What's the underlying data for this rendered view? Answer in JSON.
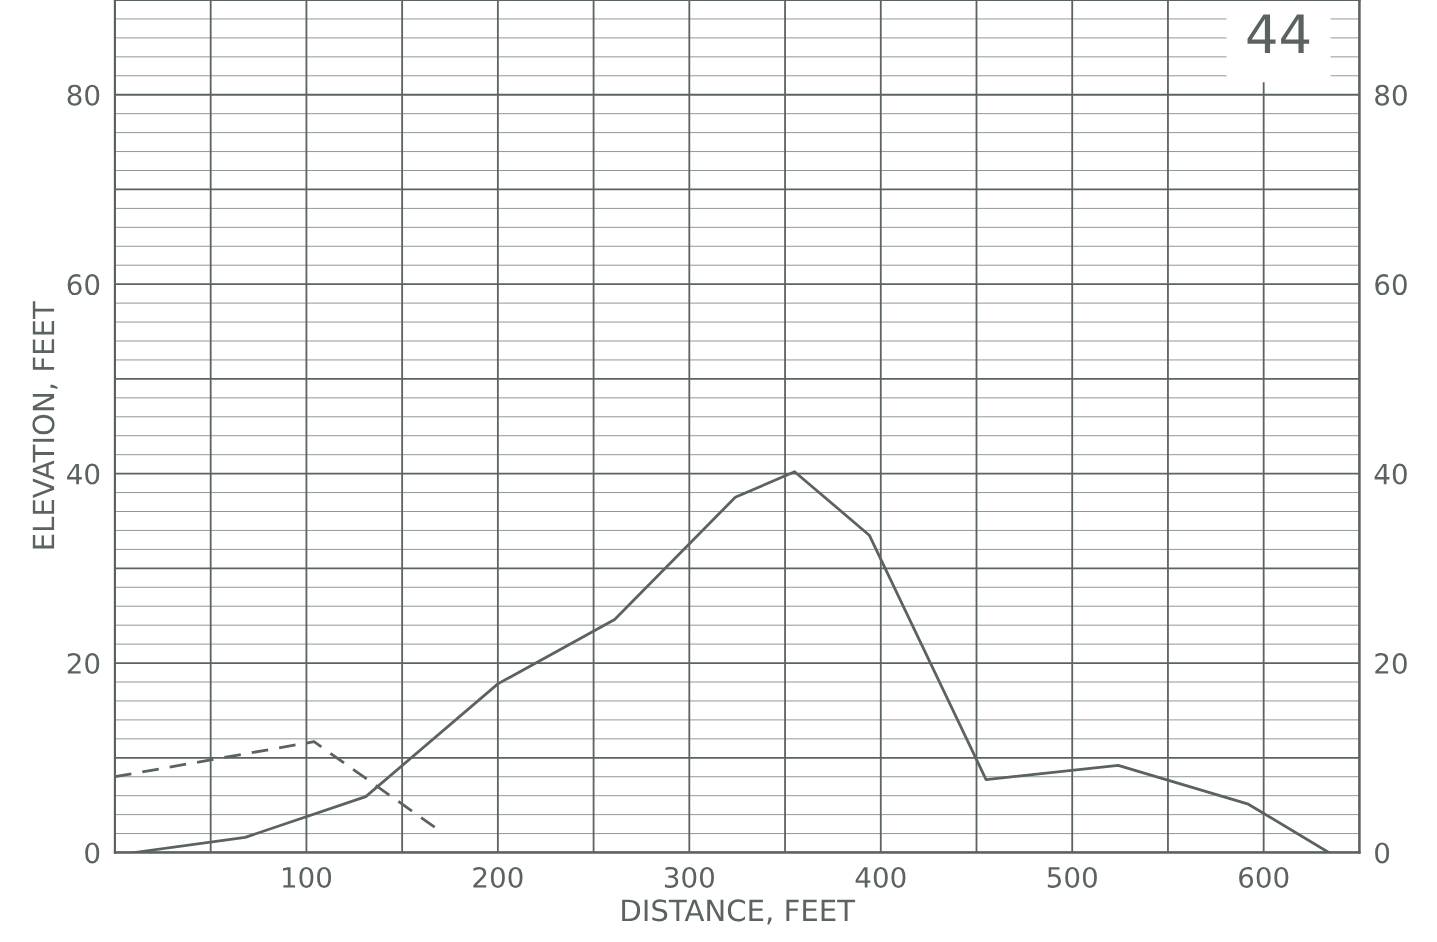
{
  "chart_data": {
    "type": "line",
    "xlabel": "DISTANCE, FEET",
    "ylabel": "ELEVATION, FEET",
    "annotations": [
      "44"
    ],
    "series": [
      {
        "color": "#5b6361",
        "line_style": "solid",
        "x": [
          10,
          68,
          131,
          200,
          261,
          324,
          355,
          394,
          455,
          524,
          592,
          634
        ],
        "values": [
          0,
          1.6,
          5.9,
          17.8,
          24.6,
          37.5,
          40.2,
          33.5,
          7.7,
          9.2,
          5.1,
          0
        ]
      },
      {
        "color": "#5b6361",
        "line_style": "dashed",
        "x": [
          0,
          104,
          171
        ],
        "values": [
          8.0,
          11.7,
          2.1
        ]
      }
    ],
    "xlim": [
      0,
      650
    ],
    "ylim": [
      0,
      90
    ],
    "xticks": [
      {
        "value": 50,
        "label": null
      },
      100,
      {
        "value": 150,
        "label": null
      },
      200,
      {
        "value": 250,
        "label": null
      },
      300,
      {
        "value": 350,
        "label": null
      },
      400,
      {
        "value": 450,
        "label": null
      },
      500,
      {
        "value": 550,
        "label": null
      },
      600
    ],
    "yticks": [
      0,
      {
        "value": 10,
        "label": null
      },
      20,
      {
        "value": 30,
        "label": null
      },
      40,
      {
        "value": 50,
        "label": null
      },
      60,
      {
        "value": 70,
        "label": null
      },
      80
    ],
    "y2lim": [
      0,
      90
    ],
    "y2ticks": [
      0,
      20,
      40,
      60,
      80
    ],
    "grid": true
  }
}
